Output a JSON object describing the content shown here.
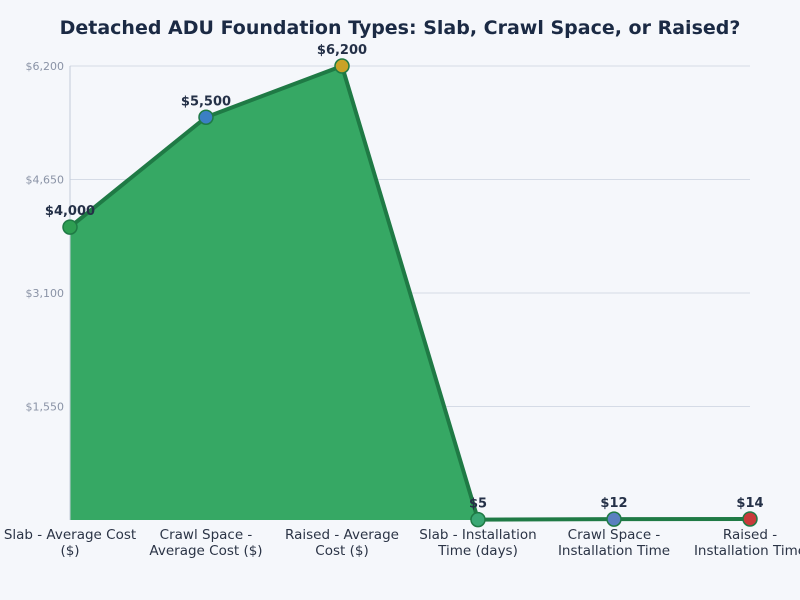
{
  "chart_data": {
    "type": "area",
    "title": "Detached ADU Foundation Types: Slab, Crawl Space, or Raised?",
    "categories": [
      [
        "Slab - Average Cost",
        "($)"
      ],
      [
        "Crawl Space -",
        "Average Cost ($)"
      ],
      [
        "Raised - Average",
        "Cost ($)"
      ],
      [
        "Slab - Installation",
        "Time (days)"
      ],
      [
        "Crawl Space -",
        "Installation Time"
      ],
      [
        "Raised -",
        "Installation Time"
      ]
    ],
    "values": [
      4000,
      5500,
      6200,
      5,
      12,
      14
    ],
    "value_labels": [
      "$4,000",
      "$5,500",
      "$6,200",
      "$5",
      "$12",
      "$14"
    ],
    "ylim": [
      0,
      6200
    ],
    "yticks": [
      1550,
      3100,
      4650,
      6200
    ],
    "ytick_labels": [
      "$1,550",
      "$3,100",
      "$4,650",
      "$6,200"
    ],
    "grid": true,
    "xlabel": "",
    "ylabel": "",
    "colors": {
      "area_fill": "#36a864",
      "line": "#1f7a45",
      "points": [
        "#2e9e52",
        "#3b7fc4",
        "#c9a227",
        "#3aa874",
        "#5a7fc0",
        "#c93a3a"
      ]
    }
  }
}
